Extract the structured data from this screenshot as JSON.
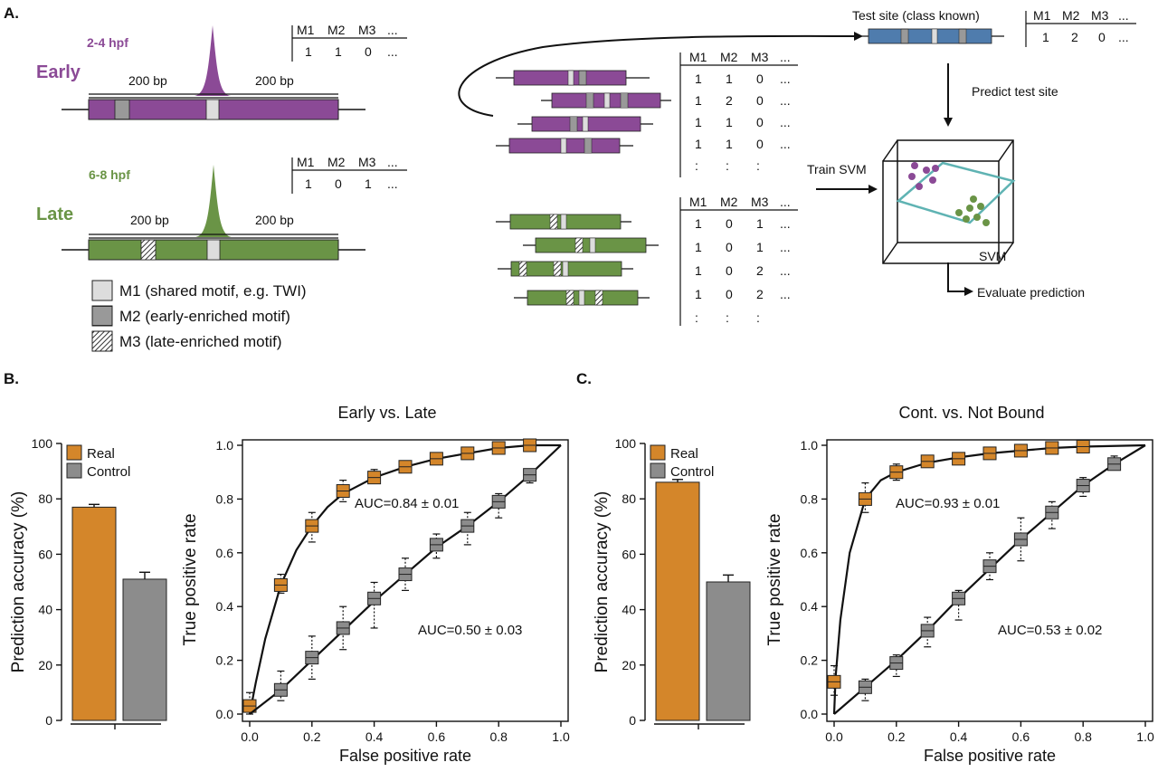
{
  "panels": {
    "a": {
      "label": "A.",
      "early": {
        "stage": "2-4 hpf",
        "name": "Early",
        "flank_left": "200 bp",
        "flank_right": "200 bp",
        "table_header": [
          "M1",
          "M2",
          "M3",
          "..."
        ],
        "table_row": [
          "1",
          "1",
          "0",
          "..."
        ]
      },
      "late": {
        "stage": "6-8 hpf",
        "name": "Late",
        "flank_left": "200 bp",
        "flank_right": "200 bp",
        "table_header": [
          "M1",
          "M2",
          "M3",
          "..."
        ],
        "table_row": [
          "1",
          "0",
          "1",
          "..."
        ]
      },
      "legend": [
        {
          "text": "M1 (shared motif, e.g. TWI)"
        },
        {
          "text": "M2 (early-enriched motif)"
        },
        {
          "text": "M3 (late-enriched motif)"
        }
      ],
      "early_matrix": {
        "header": [
          "M1",
          "M2",
          "M3",
          "..."
        ],
        "rows": [
          [
            "1",
            "1",
            "0",
            "..."
          ],
          [
            "1",
            "2",
            "0",
            "..."
          ],
          [
            "1",
            "1",
            "0",
            "..."
          ],
          [
            "1",
            "1",
            "0",
            "..."
          ],
          [
            ":",
            ":",
            ":",
            ""
          ]
        ]
      },
      "late_matrix": {
        "header": [
          "M1",
          "M2",
          "M3",
          "..."
        ],
        "rows": [
          [
            "1",
            "0",
            "1",
            "..."
          ],
          [
            "1",
            "0",
            "1",
            "..."
          ],
          [
            "1",
            "0",
            "2",
            "..."
          ],
          [
            "1",
            "0",
            "2",
            "..."
          ],
          [
            ":",
            ":",
            ":",
            ""
          ]
        ]
      },
      "test_site": {
        "label": "Test site (class known)",
        "header": [
          "M1",
          "M2",
          "M3",
          "..."
        ],
        "row": [
          "1",
          "2",
          "0",
          "..."
        ]
      },
      "predict_label": "Predict test site",
      "train_label": "Train SVM",
      "svm_label": "SVM",
      "evaluate_label": "Evaluate prediction",
      "colors": {
        "early": "#8b4a96",
        "late": "#6a9446",
        "test": "#4f7cad",
        "hyperplane": "#5fb3b3"
      }
    },
    "b": {
      "label": "B."
    },
    "c": {
      "label": "C."
    }
  },
  "chart_data": [
    {
      "id": "b-bar",
      "type": "bar",
      "ylabel": "Prediction  accuracy (%)",
      "ylim": [
        0,
        100
      ],
      "yticks": [
        "0",
        "20",
        "40",
        "60",
        "80",
        "100"
      ],
      "legend": [
        "Real",
        "Control"
      ],
      "categories": [
        "Real",
        "Control"
      ],
      "values": [
        77,
        51
      ],
      "errors": [
        1.0,
        2.5
      ],
      "colors": [
        "#d4862a",
        "#8c8c8c"
      ]
    },
    {
      "id": "b-roc",
      "type": "line",
      "title": "Early vs. Late",
      "xlabel": "False positive rate",
      "ylabel": "True positive  rate",
      "xlim": [
        0,
        1
      ],
      "ylim": [
        0,
        1
      ],
      "xticks": [
        "0.0",
        "0.2",
        "0.4",
        "0.6",
        "0.8",
        "1.0"
      ],
      "yticks": [
        "0.0",
        "0.2",
        "0.4",
        "0.6",
        "0.8",
        "1.0"
      ],
      "series": [
        {
          "name": "Real",
          "color": "#d4862a",
          "auc": "AUC=0.84 ± 0.01",
          "curve": [
            [
              0,
              0
            ],
            [
              0.02,
              0.12
            ],
            [
              0.05,
              0.28
            ],
            [
              0.1,
              0.48
            ],
            [
              0.15,
              0.61
            ],
            [
              0.2,
              0.7
            ],
            [
              0.25,
              0.77
            ],
            [
              0.3,
              0.82
            ],
            [
              0.4,
              0.88
            ],
            [
              0.5,
              0.92
            ],
            [
              0.6,
              0.95
            ],
            [
              0.7,
              0.97
            ],
            [
              0.8,
              0.99
            ],
            [
              0.9,
              1.0
            ],
            [
              1.0,
              1.0
            ]
          ],
          "boxes": [
            {
              "x": 0.0,
              "y": 0.03,
              "lo": 0.0,
              "hi": 0.08
            },
            {
              "x": 0.1,
              "y": 0.48,
              "lo": 0.45,
              "hi": 0.52
            },
            {
              "x": 0.2,
              "y": 0.7,
              "lo": 0.64,
              "hi": 0.75
            },
            {
              "x": 0.3,
              "y": 0.83,
              "lo": 0.79,
              "hi": 0.87
            },
            {
              "x": 0.4,
              "y": 0.88,
              "lo": 0.86,
              "hi": 0.91
            },
            {
              "x": 0.5,
              "y": 0.92,
              "lo": 0.9,
              "hi": 0.94
            },
            {
              "x": 0.6,
              "y": 0.95,
              "lo": 0.94,
              "hi": 0.96
            },
            {
              "x": 0.7,
              "y": 0.97,
              "lo": 0.96,
              "hi": 0.98
            },
            {
              "x": 0.8,
              "y": 0.99,
              "lo": 0.98,
              "hi": 1.0
            },
            {
              "x": 0.9,
              "y": 1.0,
              "lo": 0.99,
              "hi": 1.0
            }
          ]
        },
        {
          "name": "Control",
          "color": "#8c8c8c",
          "auc": "AUC=0.50 ± 0.03",
          "curve": [
            [
              0,
              0
            ],
            [
              0.1,
              0.09
            ],
            [
              0.2,
              0.2
            ],
            [
              0.3,
              0.31
            ],
            [
              0.4,
              0.42
            ],
            [
              0.5,
              0.52
            ],
            [
              0.6,
              0.62
            ],
            [
              0.7,
              0.7
            ],
            [
              0.8,
              0.79
            ],
            [
              0.9,
              0.89
            ],
            [
              1.0,
              1.0
            ]
          ],
          "boxes": [
            {
              "x": 0.1,
              "y": 0.09,
              "lo": 0.05,
              "hi": 0.16
            },
            {
              "x": 0.2,
              "y": 0.21,
              "lo": 0.13,
              "hi": 0.29
            },
            {
              "x": 0.3,
              "y": 0.32,
              "lo": 0.24,
              "hi": 0.4
            },
            {
              "x": 0.4,
              "y": 0.43,
              "lo": 0.32,
              "hi": 0.49
            },
            {
              "x": 0.5,
              "y": 0.52,
              "lo": 0.46,
              "hi": 0.58
            },
            {
              "x": 0.6,
              "y": 0.63,
              "lo": 0.58,
              "hi": 0.67
            },
            {
              "x": 0.7,
              "y": 0.7,
              "lo": 0.63,
              "hi": 0.75
            },
            {
              "x": 0.8,
              "y": 0.79,
              "lo": 0.73,
              "hi": 0.82
            },
            {
              "x": 0.9,
              "y": 0.89,
              "lo": 0.86,
              "hi": 0.91
            }
          ]
        }
      ]
    },
    {
      "id": "c-bar",
      "type": "bar",
      "ylabel": "Prediction  accuracy (%)",
      "ylim": [
        0,
        100
      ],
      "yticks": [
        "0",
        "20",
        "40",
        "60",
        "80",
        "100"
      ],
      "legend": [
        "Real",
        "Control"
      ],
      "categories": [
        "Real",
        "Control"
      ],
      "values": [
        86,
        50
      ],
      "errors": [
        1.0,
        2.5
      ],
      "colors": [
        "#d4862a",
        "#8c8c8c"
      ]
    },
    {
      "id": "c-roc",
      "type": "line",
      "title": "Cont. vs. Not Bound",
      "xlabel": "False positive rate",
      "ylabel": "True positive rate",
      "xlim": [
        0,
        1
      ],
      "ylim": [
        0,
        1
      ],
      "xticks": [
        "0.0",
        "0.2",
        "0.4",
        "0.6",
        "0.8",
        "1.0"
      ],
      "yticks": [
        "0.0",
        "0.2",
        "0.4",
        "0.6",
        "0.8",
        "1.0"
      ],
      "series": [
        {
          "name": "Real",
          "color": "#d4862a",
          "auc": "AUC=0.93 ± 0.01",
          "curve": [
            [
              0,
              0
            ],
            [
              0.005,
              0.14
            ],
            [
              0.02,
              0.35
            ],
            [
              0.05,
              0.6
            ],
            [
              0.1,
              0.8
            ],
            [
              0.15,
              0.87
            ],
            [
              0.2,
              0.9
            ],
            [
              0.3,
              0.935
            ],
            [
              0.4,
              0.955
            ],
            [
              0.5,
              0.97
            ],
            [
              0.6,
              0.98
            ],
            [
              0.7,
              0.99
            ],
            [
              0.8,
              0.995
            ],
            [
              1.0,
              1.0
            ]
          ],
          "boxes": [
            {
              "x": 0.0,
              "y": 0.12,
              "lo": 0.07,
              "hi": 0.18
            },
            {
              "x": 0.1,
              "y": 0.8,
              "lo": 0.75,
              "hi": 0.86
            },
            {
              "x": 0.2,
              "y": 0.9,
              "lo": 0.87,
              "hi": 0.93
            },
            {
              "x": 0.3,
              "y": 0.94,
              "lo": 0.92,
              "hi": 0.96
            },
            {
              "x": 0.4,
              "y": 0.95,
              "lo": 0.94,
              "hi": 0.97
            },
            {
              "x": 0.5,
              "y": 0.97,
              "lo": 0.96,
              "hi": 0.98
            },
            {
              "x": 0.6,
              "y": 0.98,
              "lo": 0.97,
              "hi": 0.99
            },
            {
              "x": 0.7,
              "y": 0.99,
              "lo": 0.98,
              "hi": 1.0
            },
            {
              "x": 0.8,
              "y": 0.995,
              "lo": 0.99,
              "hi": 1.0
            }
          ]
        },
        {
          "name": "Control",
          "color": "#8c8c8c",
          "auc": "AUC=0.53 ± 0.02",
          "curve": [
            [
              0,
              0
            ],
            [
              0.1,
              0.1
            ],
            [
              0.2,
              0.2
            ],
            [
              0.3,
              0.31
            ],
            [
              0.4,
              0.43
            ],
            [
              0.5,
              0.54
            ],
            [
              0.6,
              0.65
            ],
            [
              0.7,
              0.75
            ],
            [
              0.8,
              0.85
            ],
            [
              0.9,
              0.93
            ],
            [
              1.0,
              1.0
            ]
          ],
          "boxes": [
            {
              "x": 0.1,
              "y": 0.1,
              "lo": 0.05,
              "hi": 0.13
            },
            {
              "x": 0.2,
              "y": 0.19,
              "lo": 0.14,
              "hi": 0.22
            },
            {
              "x": 0.3,
              "y": 0.31,
              "lo": 0.25,
              "hi": 0.36
            },
            {
              "x": 0.4,
              "y": 0.43,
              "lo": 0.35,
              "hi": 0.46
            },
            {
              "x": 0.5,
              "y": 0.55,
              "lo": 0.5,
              "hi": 0.6
            },
            {
              "x": 0.6,
              "y": 0.65,
              "lo": 0.57,
              "hi": 0.73
            },
            {
              "x": 0.7,
              "y": 0.75,
              "lo": 0.69,
              "hi": 0.79
            },
            {
              "x": 0.8,
              "y": 0.85,
              "lo": 0.81,
              "hi": 0.88
            },
            {
              "x": 0.9,
              "y": 0.93,
              "lo": 0.91,
              "hi": 0.96
            }
          ]
        }
      ]
    }
  ]
}
